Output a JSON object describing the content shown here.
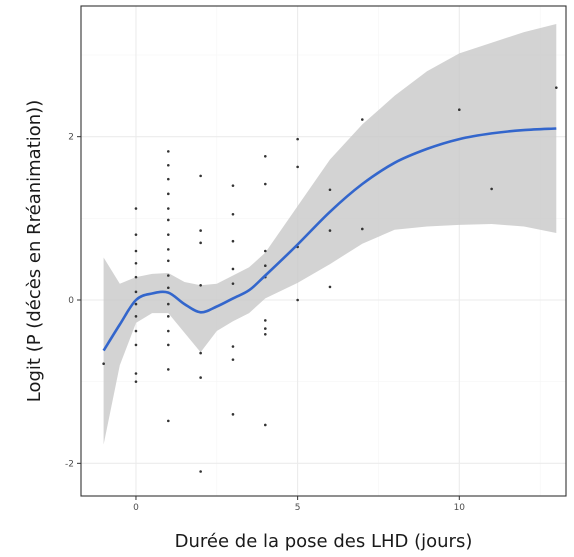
{
  "chart_data": {
    "type": "scatter",
    "title": "",
    "xlabel": "Durée de la pose des LHD (jours)",
    "ylabel": "Logit (P (décès en Rréanimation))",
    "xlim": [
      -1.7,
      13.3
    ],
    "ylim": [
      -2.4,
      3.6
    ],
    "x_ticks": [
      0,
      5,
      10
    ],
    "y_ticks": [
      -2,
      0,
      2
    ],
    "x_tick_labels": [
      "0",
      "5",
      "10"
    ],
    "y_tick_labels": [
      "-2",
      "0",
      "2"
    ],
    "grid": true,
    "colors": {
      "panel_border": "#333333",
      "grid_major": "#ebebeb",
      "grid_minor": "#f5f5f5",
      "points": "#333333",
      "smooth_line": "#3366cc",
      "ribbon": "#c8c8c8"
    },
    "points": [
      {
        "x": -1,
        "y": -0.78
      },
      {
        "x": 0,
        "y": 1.12
      },
      {
        "x": 0,
        "y": 0.8
      },
      {
        "x": 0,
        "y": 0.6
      },
      {
        "x": 0,
        "y": 0.45
      },
      {
        "x": 0,
        "y": 0.28
      },
      {
        "x": 0,
        "y": 0.1
      },
      {
        "x": 0,
        "y": -0.05
      },
      {
        "x": 0,
        "y": -0.2
      },
      {
        "x": 0,
        "y": -0.38
      },
      {
        "x": 0,
        "y": -0.55
      },
      {
        "x": 0,
        "y": -0.9
      },
      {
        "x": 0,
        "y": -1.0
      },
      {
        "x": 1,
        "y": 1.82
      },
      {
        "x": 1,
        "y": 1.65
      },
      {
        "x": 1,
        "y": 1.48
      },
      {
        "x": 1,
        "y": 1.3
      },
      {
        "x": 1,
        "y": 1.12
      },
      {
        "x": 1,
        "y": 0.98
      },
      {
        "x": 1,
        "y": 0.8
      },
      {
        "x": 1,
        "y": 0.62
      },
      {
        "x": 1,
        "y": 0.48
      },
      {
        "x": 1,
        "y": 0.3
      },
      {
        "x": 1,
        "y": 0.15
      },
      {
        "x": 1,
        "y": -0.05
      },
      {
        "x": 1,
        "y": -0.2
      },
      {
        "x": 1,
        "y": -0.38
      },
      {
        "x": 1,
        "y": -0.55
      },
      {
        "x": 1,
        "y": -0.85
      },
      {
        "x": 1,
        "y": -1.48
      },
      {
        "x": 2,
        "y": 1.52
      },
      {
        "x": 2,
        "y": 0.85
      },
      {
        "x": 2,
        "y": 0.7
      },
      {
        "x": 2,
        "y": 0.18
      },
      {
        "x": 2,
        "y": -0.65
      },
      {
        "x": 2,
        "y": -0.95
      },
      {
        "x": 2,
        "y": -2.1
      },
      {
        "x": 3,
        "y": 1.4
      },
      {
        "x": 3,
        "y": 1.05
      },
      {
        "x": 3,
        "y": 0.72
      },
      {
        "x": 3,
        "y": 0.38
      },
      {
        "x": 3,
        "y": 0.2
      },
      {
        "x": 3,
        "y": -0.57
      },
      {
        "x": 3,
        "y": -0.73
      },
      {
        "x": 3,
        "y": -1.4
      },
      {
        "x": 4,
        "y": 1.76
      },
      {
        "x": 4,
        "y": 1.42
      },
      {
        "x": 4,
        "y": 0.6
      },
      {
        "x": 4,
        "y": 0.42
      },
      {
        "x": 4,
        "y": 0.28
      },
      {
        "x": 4,
        "y": -0.25
      },
      {
        "x": 4,
        "y": -0.35
      },
      {
        "x": 4,
        "y": -0.42
      },
      {
        "x": 4,
        "y": -1.53
      },
      {
        "x": 5,
        "y": 1.97
      },
      {
        "x": 5,
        "y": 1.63
      },
      {
        "x": 5,
        "y": 0.65
      },
      {
        "x": 5,
        "y": 0.0
      },
      {
        "x": 6,
        "y": 1.35
      },
      {
        "x": 6,
        "y": 0.85
      },
      {
        "x": 6,
        "y": 0.16
      },
      {
        "x": 7,
        "y": 2.21
      },
      {
        "x": 7,
        "y": 0.87
      },
      {
        "x": 10,
        "y": 2.33
      },
      {
        "x": 11,
        "y": 1.36
      },
      {
        "x": 13,
        "y": 2.6
      }
    ],
    "smooth": {
      "x": [
        -1,
        -0.5,
        0,
        0.5,
        1,
        1.5,
        2,
        2.5,
        3,
        3.5,
        4,
        5,
        6,
        7,
        8,
        9,
        10,
        11,
        12,
        13
      ],
      "y": [
        -0.62,
        -0.3,
        0.0,
        0.08,
        0.09,
        -0.05,
        -0.15,
        -0.08,
        0.02,
        0.12,
        0.3,
        0.68,
        1.08,
        1.42,
        1.68,
        1.85,
        1.97,
        2.04,
        2.08,
        2.1
      ],
      "upper": [
        0.52,
        0.2,
        0.28,
        0.32,
        0.33,
        0.22,
        0.18,
        0.2,
        0.3,
        0.4,
        0.58,
        1.15,
        1.72,
        2.15,
        2.5,
        2.8,
        3.02,
        3.15,
        3.28,
        3.38
      ],
      "lower": [
        -1.77,
        -0.8,
        -0.28,
        -0.16,
        -0.16,
        -0.4,
        -0.64,
        -0.38,
        -0.26,
        -0.16,
        0.02,
        0.21,
        0.44,
        0.69,
        0.86,
        0.9,
        0.92,
        0.93,
        0.9,
        0.82
      ]
    }
  }
}
